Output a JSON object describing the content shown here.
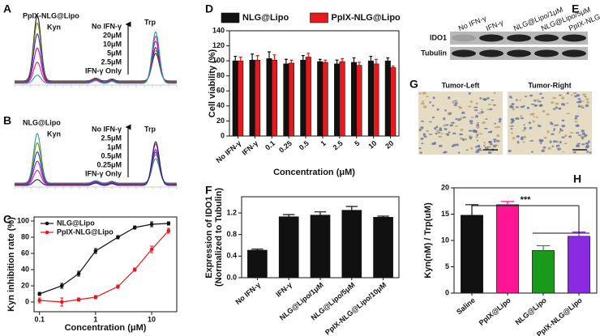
{
  "chart_data": [
    {
      "type": "chromatogram",
      "panel": "A",
      "title": "PpIX-NLG@Lipo",
      "categories": [
        "Kyn",
        "Trp"
      ],
      "series": [
        {
          "name": "No IFN-γ",
          "color": "#2a9d9d",
          "values": [
            0.12,
            0.75
          ]
        },
        {
          "name": "20μM",
          "color": "#e0208f",
          "values": [
            0.3,
            0.68
          ]
        },
        {
          "name": "10μM",
          "color": "#b0109f",
          "values": [
            0.5,
            0.6
          ]
        },
        {
          "name": "5μM",
          "color": "#3030c0",
          "values": [
            0.7,
            0.5
          ]
        },
        {
          "name": "2.5μM",
          "color": "#8a8a1a",
          "values": [
            0.85,
            0.45
          ]
        },
        {
          "name": "IFN-γ Only",
          "color": "#222222",
          "values": [
            0.95,
            0.4
          ]
        }
      ]
    },
    {
      "type": "chromatogram",
      "panel": "B",
      "title": "NLG@Lipo",
      "categories": [
        "Kyn",
        "Trp"
      ],
      "series": [
        {
          "name": "No IFN-γ",
          "color": "#1a1a8a",
          "values": [
            0.1,
            0.75
          ]
        },
        {
          "name": "2.5μM",
          "color": "#e0208f",
          "values": [
            0.25,
            0.7
          ]
        },
        {
          "name": "1μM",
          "color": "#9020b0",
          "values": [
            0.4,
            0.6
          ]
        },
        {
          "name": "0.5μM",
          "color": "#2040d0",
          "values": [
            0.55,
            0.55
          ]
        },
        {
          "name": "0.25μM",
          "color": "#8a8a1a",
          "values": [
            0.7,
            0.5
          ]
        },
        {
          "name": "IFN-γ Only",
          "color": "#2a9d9d",
          "values": [
            0.85,
            0.42
          ]
        }
      ]
    },
    {
      "type": "line",
      "panel": "C",
      "xlabel": "Concentration (μM)",
      "ylabel": "Kyn inhibition rate (%)",
      "x": [
        0.1,
        0.25,
        0.5,
        1,
        2.5,
        5,
        10,
        20
      ],
      "xscale": "log",
      "xlim": [
        0.08,
        28
      ],
      "xticks": [
        0.1,
        1,
        10
      ],
      "ylim": [
        -12,
        105
      ],
      "yticks": [
        0,
        20,
        40,
        60,
        80,
        100
      ],
      "legend": "upper left",
      "series": [
        {
          "name": "NLG@Lipo",
          "color": "#111111",
          "values": [
            10,
            20,
            35,
            63,
            80,
            92,
            96,
            97
          ],
          "errors": [
            2,
            3,
            3,
            3,
            2,
            2,
            3,
            2
          ]
        },
        {
          "name": "PpIX-NLG@Lipo",
          "color": "#e8191c",
          "values": [
            2,
            0,
            3,
            6,
            19,
            40,
            65,
            88
          ],
          "errors": [
            3,
            5,
            2,
            2,
            2,
            2,
            4,
            3
          ]
        }
      ]
    },
    {
      "type": "bar",
      "panel": "D",
      "xlabel": "Concentration (μM)",
      "ylabel": "Cell viability (%)",
      "categories": [
        "No IFN-γ",
        "IFN-γ",
        "0.1",
        "0.25",
        "0.5",
        "1",
        "2.5",
        "5",
        "10",
        "20"
      ],
      "ylim": [
        0,
        140
      ],
      "yticks": [
        0,
        20,
        40,
        60,
        80,
        100,
        120,
        140
      ],
      "legend": "top",
      "series": [
        {
          "name": "NLG@Lipo",
          "color": "#111111",
          "values": [
            100,
            101,
            103,
            96,
            101,
            99,
            96,
            98,
            100,
            100
          ],
          "errors": [
            6,
            8,
            9,
            6,
            6,
            3,
            5,
            6,
            6,
            4
          ]
        },
        {
          "name": "PpIX-NLG@Lipo",
          "color": "#e8191c",
          "values": [
            100,
            101,
            101,
            97,
            105,
            98,
            99,
            94,
            96,
            91
          ],
          "errors": [
            5,
            6,
            7,
            4,
            5,
            3,
            4,
            4,
            6,
            2
          ]
        }
      ]
    },
    {
      "type": "blot",
      "panel": "E",
      "lanes": [
        "No IFN-γ",
        "IFN-γ",
        "NLG@Lipo/1μM",
        "NLG@Lipo/5μM",
        "PpIX-NLG@Lipo/10μM"
      ],
      "rows": [
        "IDO1",
        "Tubulin"
      ]
    },
    {
      "type": "bar",
      "panel": "F",
      "ylabel": [
        "Expression of IDO1",
        "(Normalized to Tubulin)"
      ],
      "categories": [
        "No IFN-γ",
        "IFN-γ",
        "NLG@Lipo/1μM",
        "NLG@Lipo/5μM",
        "PpIX-NLG@Lipo/10μM"
      ],
      "values": [
        0.51,
        1.13,
        1.16,
        1.25,
        1.12
      ],
      "errors": [
        0.02,
        0.04,
        0.06,
        0.07,
        0.02
      ],
      "color": "#111111",
      "ylim": [
        0,
        1.5
      ],
      "yticks": [
        {
          "value": 0,
          "label": "0.0"
        },
        0.4,
        0.8,
        1.2
      ]
    },
    {
      "type": "images",
      "panel": "G",
      "labels": [
        "Tumor-Left",
        "Tumor-Right"
      ]
    },
    {
      "type": "bar",
      "panel": "H",
      "ylabel": "Kyn(nM) / Trp(uM)",
      "categories": [
        "Saline",
        "PpIX@Lipo",
        "NLG@Lipo",
        "PpIX-NLG@Lipo"
      ],
      "values": [
        14.8,
        16.8,
        8.1,
        10.8
      ],
      "errors": [
        2.0,
        0.6,
        0.9,
        0.8
      ],
      "colors": [
        "#111111",
        "#ff1493",
        "#1a9a1a",
        "#8a2be2"
      ],
      "ylim": [
        0,
        20
      ],
      "yticks": [
        0,
        5,
        10,
        15,
        20
      ],
      "annotation": "***"
    }
  ]
}
